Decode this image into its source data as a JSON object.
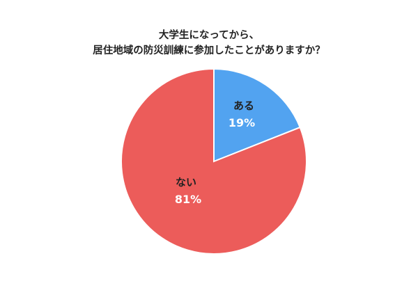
{
  "title_lines": [
    "大学生になってから、",
    "居住地域の防災訓練に参加したことがありますか？"
  ],
  "chart_data": {
    "type": "pie",
    "title": "大学生になってから、居住地域の防災訓練に参加したことがありますか？",
    "slices": [
      {
        "label": "ある",
        "value": 19,
        "value_label": "19%",
        "color": "#52a3f0"
      },
      {
        "label": "ない",
        "value": 81,
        "value_label": "81%",
        "color": "#ec5c5a"
      }
    ],
    "start": "12 o'clock",
    "direction": "clockwise",
    "legend": "none"
  }
}
